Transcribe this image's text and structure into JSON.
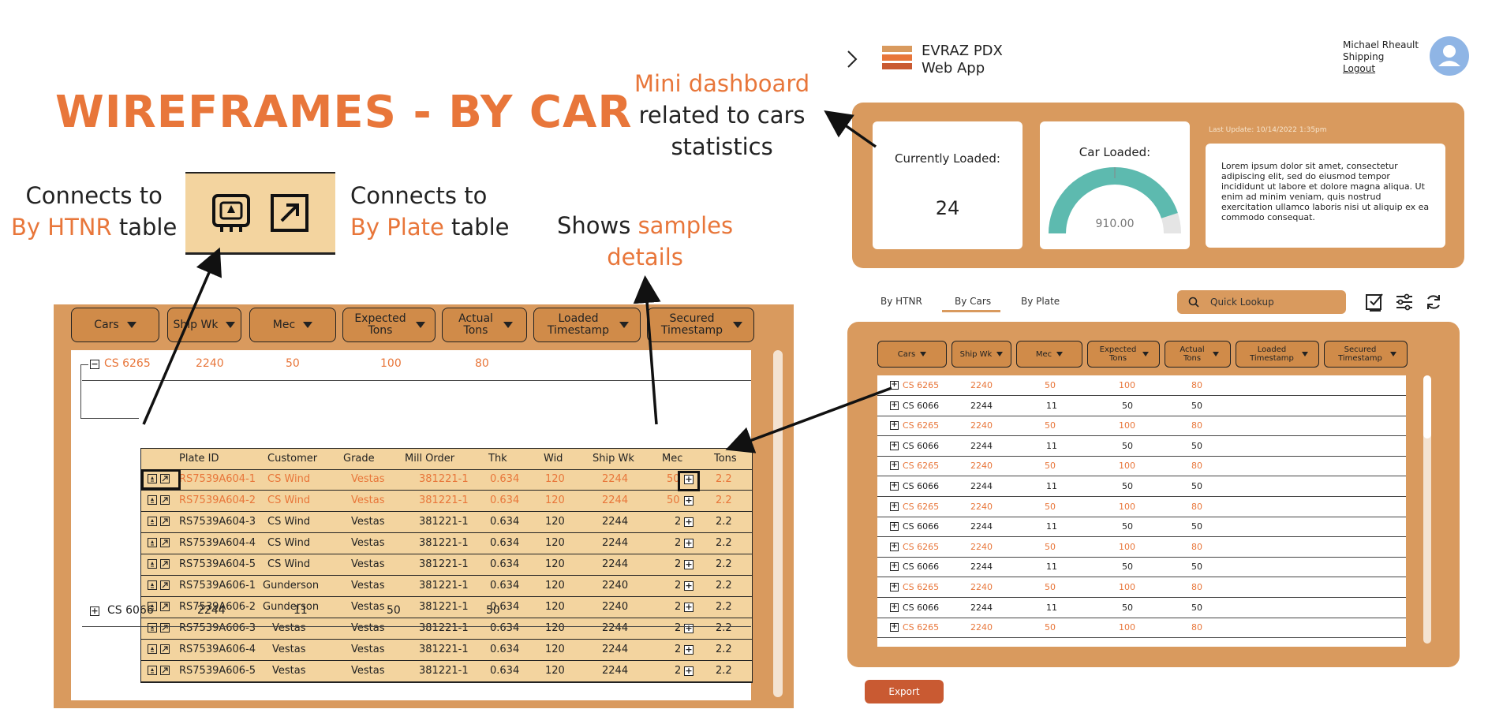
{
  "title": "WIREFRAMES - BY CAR",
  "notes": {
    "htnr": {
      "line1": "Connects to",
      "hl": "By HTNR",
      "rest": " table"
    },
    "plate": {
      "line1": "Connects to",
      "hl": "By Plate",
      "rest": " table"
    },
    "samples": {
      "pre": "Shows ",
      "hl1": "samples",
      "hl2": "details"
    },
    "mini": {
      "hl": "Mini dashboard",
      "line2": "related to cars",
      "line3": "statistics"
    }
  },
  "left_panel": {
    "headers": [
      "Cars",
      "Ship Wk",
      "Mec",
      "Expected Tons",
      "Actual Tons",
      "Loaded Timestamp",
      "Secured Timestamp"
    ],
    "car_row_1": {
      "car": "CS 6265",
      "ship_wk": "2240",
      "mec": "50",
      "expected": "100",
      "actual": "80"
    },
    "car_row_2": {
      "car": "CS 6066",
      "ship_wk": "2244",
      "mec": "11",
      "expected": "50",
      "actual": "50"
    },
    "plate_headers": [
      "Plate ID",
      "Customer",
      "Grade",
      "Mill Order",
      "Thk",
      "Wid",
      "Ship Wk",
      "Mec",
      "Tons"
    ],
    "plates": [
      {
        "id": "RS7539A604-1",
        "customer": "CS Wind",
        "grade": "Vestas",
        "mill": "381221-1",
        "thk": "0.634",
        "wid": "120",
        "ship": "2244",
        "mec": "50",
        "tons": "2.2",
        "hl": true
      },
      {
        "id": "RS7539A604-2",
        "customer": "CS Wind",
        "grade": "Vestas",
        "mill": "381221-1",
        "thk": "0.634",
        "wid": "120",
        "ship": "2244",
        "mec": "50",
        "tons": "2.2",
        "hl": true
      },
      {
        "id": "RS7539A604-3",
        "customer": "CS Wind",
        "grade": "Vestas",
        "mill": "381221-1",
        "thk": "0.634",
        "wid": "120",
        "ship": "2244",
        "mec": "2",
        "tons": "2.2",
        "hl": false
      },
      {
        "id": "RS7539A604-4",
        "customer": "CS Wind",
        "grade": "Vestas",
        "mill": "381221-1",
        "thk": "0.634",
        "wid": "120",
        "ship": "2244",
        "mec": "2",
        "tons": "2.2",
        "hl": false
      },
      {
        "id": "RS7539A604-5",
        "customer": "CS Wind",
        "grade": "Vestas",
        "mill": "381221-1",
        "thk": "0.634",
        "wid": "120",
        "ship": "2244",
        "mec": "2",
        "tons": "2.2",
        "hl": false
      },
      {
        "id": "RS7539A606-1",
        "customer": "Gunderson",
        "grade": "Vestas",
        "mill": "381221-1",
        "thk": "0.634",
        "wid": "120",
        "ship": "2240",
        "mec": "2",
        "tons": "2.2",
        "hl": false
      },
      {
        "id": "RS7539A606-2",
        "customer": "Gunderson",
        "grade": "Vestas",
        "mill": "381221-1",
        "thk": "0.634",
        "wid": "120",
        "ship": "2240",
        "mec": "2",
        "tons": "2.2",
        "hl": false
      },
      {
        "id": "RS7539A606-3",
        "customer": "Vestas",
        "grade": "Vestas",
        "mill": "381221-1",
        "thk": "0.634",
        "wid": "120",
        "ship": "2244",
        "mec": "2",
        "tons": "2.2",
        "hl": false
      },
      {
        "id": "RS7539A606-4",
        "customer": "Vestas",
        "grade": "Vestas",
        "mill": "381221-1",
        "thk": "0.634",
        "wid": "120",
        "ship": "2244",
        "mec": "2",
        "tons": "2.2",
        "hl": false
      },
      {
        "id": "RS7539A606-5",
        "customer": "Vestas",
        "grade": "Vestas",
        "mill": "381221-1",
        "thk": "0.634",
        "wid": "120",
        "ship": "2244",
        "mec": "2",
        "tons": "2.2",
        "hl": false
      }
    ]
  },
  "app": {
    "name_line1": "EVRAZ PDX",
    "name_line2": "Web App",
    "user_name": "Michael Rheault",
    "user_role": "Shipping",
    "logout": "Logout",
    "logo_colors": [
      "#d99a5e",
      "#e8763a",
      "#c95a32"
    ]
  },
  "dashboard": {
    "currently_loaded_label": "Currently Loaded:",
    "currently_loaded_value": "24",
    "car_loaded_label": "Car Loaded:",
    "gauge_value": "910.00",
    "gauge_fraction": 0.9,
    "last_update": "Last Update: 10/14/2022 1:35pm",
    "lorem": "Lorem ipsum dolor sit amet, consectetur adipiscing elit, sed do eiusmod tempor incididunt ut labore et dolore magna aliqua. Ut enim ad minim veniam, quis nostrud exercitation ullamco laboris nisi ut aliquip ex ea commodo consequat."
  },
  "tabs": [
    "By HTNR",
    "By Cars",
    "By Plate"
  ],
  "search_placeholder": "Quick Lookup",
  "right_table": {
    "headers": [
      "Cars",
      "Ship Wk",
      "Mec",
      "Expected Tons",
      "Actual Tons",
      "Loaded Timestamp",
      "Secured Timestamp"
    ],
    "rows": [
      {
        "car": "CS 6265",
        "ship": "2240",
        "mec": "50",
        "exp": "100",
        "act": "80",
        "hl": true
      },
      {
        "car": "CS 6066",
        "ship": "2244",
        "mec": "11",
        "exp": "50",
        "act": "50",
        "hl": false
      },
      {
        "car": "CS 6265",
        "ship": "2240",
        "mec": "50",
        "exp": "100",
        "act": "80",
        "hl": true
      },
      {
        "car": "CS 6066",
        "ship": "2244",
        "mec": "11",
        "exp": "50",
        "act": "50",
        "hl": false
      },
      {
        "car": "CS 6265",
        "ship": "2240",
        "mec": "50",
        "exp": "100",
        "act": "80",
        "hl": true
      },
      {
        "car": "CS 6066",
        "ship": "2244",
        "mec": "11",
        "exp": "50",
        "act": "50",
        "hl": false
      },
      {
        "car": "CS 6265",
        "ship": "2240",
        "mec": "50",
        "exp": "100",
        "act": "80",
        "hl": true
      },
      {
        "car": "CS 6066",
        "ship": "2244",
        "mec": "11",
        "exp": "50",
        "act": "50",
        "hl": false
      },
      {
        "car": "CS 6265",
        "ship": "2240",
        "mec": "50",
        "exp": "100",
        "act": "80",
        "hl": true
      },
      {
        "car": "CS 6066",
        "ship": "2244",
        "mec": "11",
        "exp": "50",
        "act": "50",
        "hl": false
      },
      {
        "car": "CS 6265",
        "ship": "2240",
        "mec": "50",
        "exp": "100",
        "act": "80",
        "hl": true
      },
      {
        "car": "CS 6066",
        "ship": "2244",
        "mec": "11",
        "exp": "50",
        "act": "50",
        "hl": false
      },
      {
        "car": "CS 6265",
        "ship": "2240",
        "mec": "50",
        "exp": "100",
        "act": "80",
        "hl": true
      }
    ]
  },
  "export_label": "Export"
}
